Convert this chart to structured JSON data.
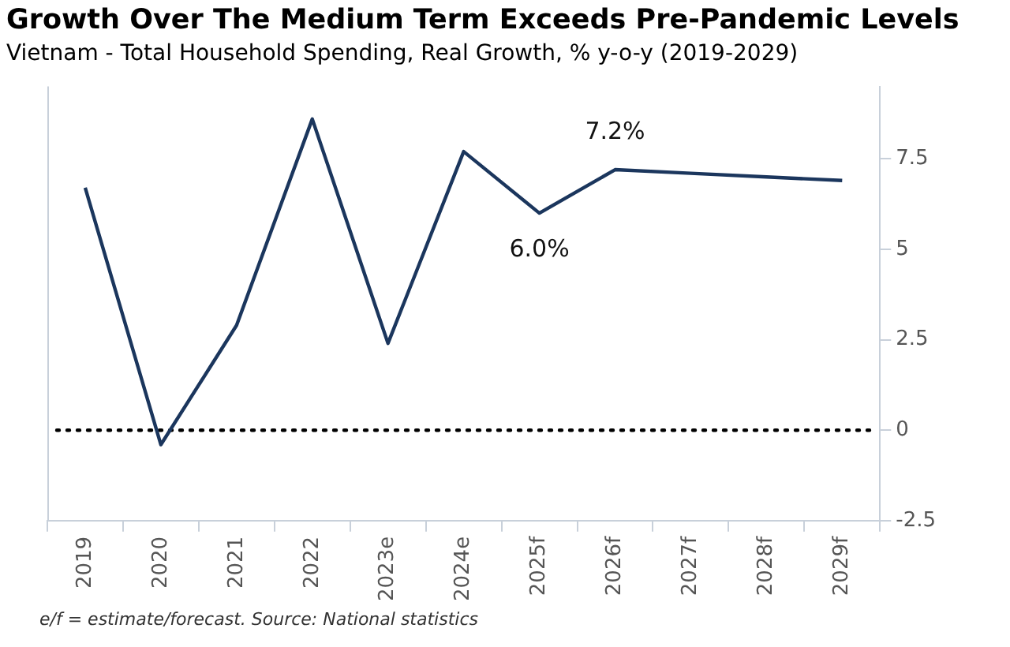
{
  "chart_data": {
    "type": "line",
    "title": "Growth Over The Medium Term Exceeds Pre-Pandemic Levels",
    "subtitle": "Vietnam - Total Household Spending, Real Growth, % y-o-y (2019-2029)",
    "categories": [
      "2019",
      "2020",
      "2021",
      "2022",
      "2023e",
      "2024e",
      "2025f",
      "2026f",
      "2027f",
      "2028f",
      "2029f"
    ],
    "series": [
      {
        "color": "#1b365d",
        "values": [
          6.7,
          -0.4,
          2.9,
          8.6,
          2.4,
          7.7,
          6.0,
          7.2,
          7.1,
          7.0,
          6.9
        ],
        "value_labels": [
          null,
          null,
          null,
          null,
          null,
          null,
          "6.0%",
          "7.2%",
          null,
          null,
          null
        ]
      }
    ],
    "ylim": [
      -2.5,
      9.5
    ],
    "yticks": [
      {
        "value": -2.5,
        "label": "-2.5"
      },
      0,
      {
        "value": 2.5,
        "label": "2.5"
      },
      5,
      {
        "value": 7.5,
        "label": "7.5"
      }
    ],
    "ref_lines": [
      {
        "axis": "y",
        "value": 0,
        "color": "#000000",
        "line_style": "dotted"
      }
    ],
    "grid": false,
    "legend": false,
    "marker": "none",
    "annotations": [
      "e/f = estimate/forecast. Source: National statistics"
    ]
  }
}
